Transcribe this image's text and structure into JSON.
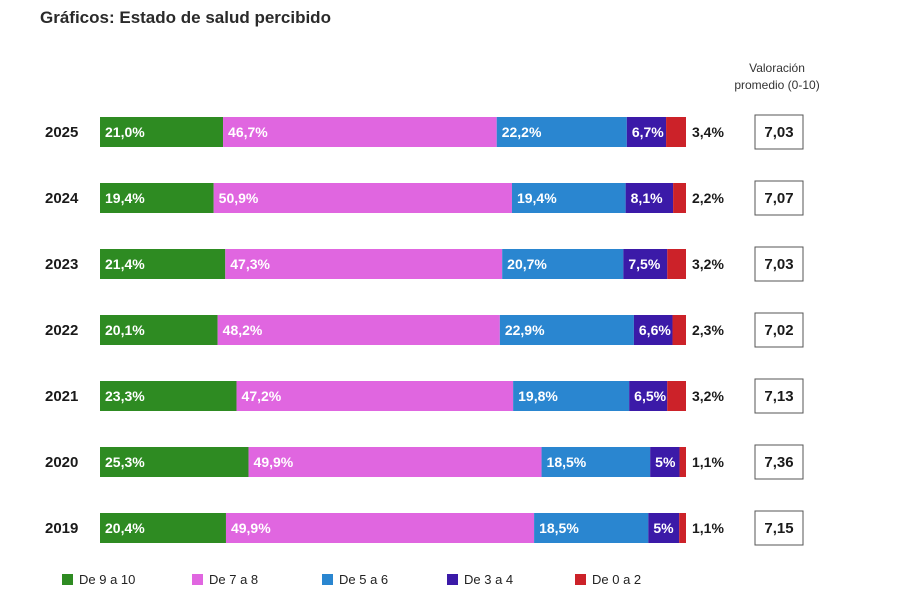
{
  "title": "Gráficos: Estado de salud percibido",
  "avg_header_line1": "Valoración",
  "avg_header_line2": "promedio (0-10)",
  "chart_data": {
    "type": "bar",
    "orientation": "horizontal",
    "stacked": true,
    "categories": [
      "2025",
      "2024",
      "2023",
      "2022",
      "2021",
      "2020",
      "2019"
    ],
    "series": [
      {
        "name": "De 9 a 10",
        "color": "#2e8b22",
        "values": [
          21.0,
          19.4,
          21.4,
          20.1,
          23.3,
          25.3,
          20.4
        ],
        "labels": [
          "21,0%",
          "19,4%",
          "21,4%",
          "20,1%",
          "23,3%",
          "25,3%",
          "20,4%"
        ]
      },
      {
        "name": "De 7 a 8",
        "color": "#e066e0",
        "values": [
          46.7,
          50.9,
          47.3,
          48.2,
          47.2,
          49.9,
          49.9
        ],
        "labels": [
          "46,7%",
          "50,9%",
          "47,3%",
          "48,2%",
          "47,2%",
          "49,9%",
          "49,9%"
        ]
      },
      {
        "name": "De 5 a 6",
        "color": "#2a86d0",
        "values": [
          22.2,
          19.4,
          20.7,
          22.9,
          19.8,
          18.5,
          18.5
        ],
        "labels": [
          "22,2%",
          "19,4%",
          "20,7%",
          "22,9%",
          "19,8%",
          "18,5%",
          "18,5%"
        ]
      },
      {
        "name": "De 3 a 4",
        "color": "#3b1aa8",
        "values": [
          6.7,
          8.1,
          7.5,
          6.6,
          6.5,
          5,
          5
        ],
        "labels": [
          "6,7%",
          "8,1%",
          "7,5%",
          "6,6%",
          "6,5%",
          "5%",
          "5%"
        ]
      },
      {
        "name": "De 0 a 2",
        "color": "#cc2229",
        "values": [
          3.4,
          2.2,
          3.2,
          2.3,
          3.2,
          1.1,
          1.1
        ],
        "labels": [
          "3,4%",
          "2,2%",
          "3,2%",
          "2,3%",
          "3,2%",
          "1,1%",
          "1,1%"
        ]
      }
    ],
    "averages": [
      "7,03",
      "7,07",
      "7,03",
      "7,02",
      "7,13",
      "7,36",
      "7,15"
    ],
    "legend_position": "bottom"
  }
}
